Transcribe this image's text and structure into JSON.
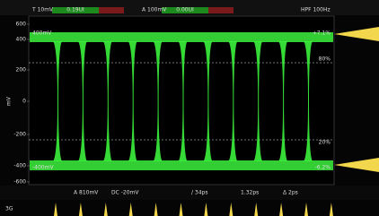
{
  "top_bar": {
    "channel": "T 10mV",
    "reading_1": "0.19UI",
    "trigger": "A 100mV",
    "reading_2": "0.00UI",
    "filter": "HPF 100Hz"
  },
  "y_axis": {
    "unit": "mV",
    "labels": [
      "600",
      "400",
      "200",
      "0",
      "-200",
      "-400",
      "-600"
    ]
  },
  "plot_labels": {
    "high_level": "400mV",
    "low_level": "-400mV"
  },
  "right_labels": [
    "+7.1%",
    "80%",
    "20%",
    "-6.2%"
  ],
  "bottom_bar": {
    "amplitude": "A 810mV",
    "dc": "DC -20mV",
    "rise": "/ 34ps",
    "jitter": "1.32ps",
    "delta": "Δ 2ps"
  },
  "lower_strip": {
    "label": "3G"
  }
}
